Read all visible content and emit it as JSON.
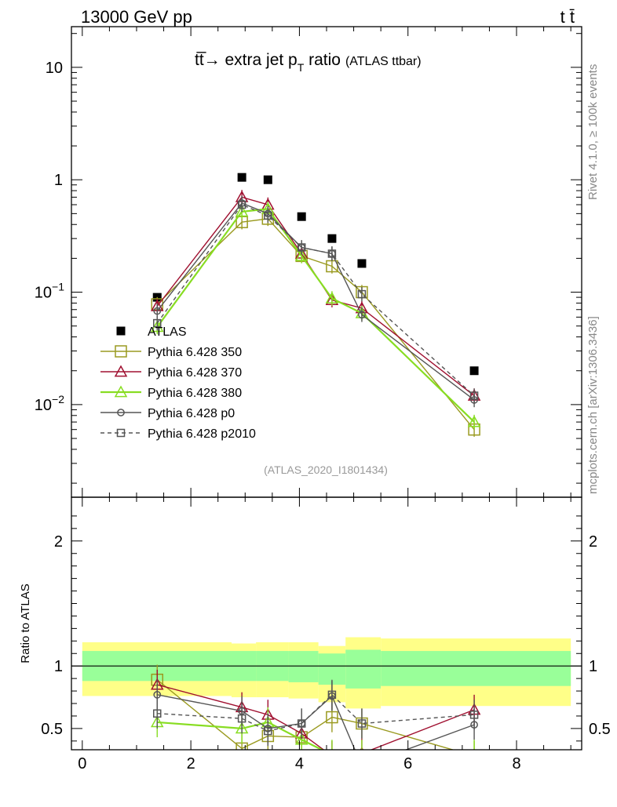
{
  "header": {
    "left": "13000 GeV pp",
    "right": "t t̄"
  },
  "title": {
    "main": "tt̅→ extra jet p",
    "sub": "T",
    "after": " ratio",
    "small": "(ATLAS ttbar)"
  },
  "side_labels": {
    "rivet": "Rivet 4.1.0, ≥ 100k events",
    "mcplots": "mcplots.cern.ch [arXiv:1306.3436]"
  },
  "analysis_tag": "(ATLAS_2020_I1801434)",
  "ratio_ylabel": "Ratio to ATLAS",
  "colors": {
    "atlas": "#000000",
    "p350": "#9a9a20",
    "p370": "#a01030",
    "p380": "#88dd22",
    "p0": "#555555",
    "p2010": "#555555",
    "band_inner": "#99ff99",
    "band_outer": "#ffff88"
  },
  "chart_data": {
    "type": "scatter",
    "xlim": [
      -0.2,
      9.2
    ],
    "main": {
      "yscale": "log",
      "ylim": [
        0.0015,
        23
      ],
      "ytick_labels": [
        {
          "v": 10,
          "base": "10",
          "exp": ""
        },
        {
          "v": 1,
          "base": "1",
          "exp": ""
        },
        {
          "v": 0.1,
          "base": "10",
          "exp": "−1"
        },
        {
          "v": 0.01,
          "base": "10",
          "exp": "−2"
        }
      ]
    },
    "ratio": {
      "ylim": [
        0.33,
        2.35
      ],
      "ytick_labels": [
        {
          "v": 2,
          "t": "2"
        },
        {
          "v": 1,
          "t": "1"
        },
        {
          "v": 0.5,
          "t": "0.5"
        }
      ]
    },
    "xtick_labels": [
      {
        "v": 0,
        "t": "0"
      },
      {
        "v": 2,
        "t": "2"
      },
      {
        "v": 4,
        "t": "4"
      },
      {
        "v": 6,
        "t": "6"
      },
      {
        "v": 8,
        "t": "8"
      }
    ],
    "x": [
      1.38,
      2.94,
      3.42,
      4.04,
      4.6,
      5.15,
      7.22
    ],
    "bands": [
      {
        "x0": 0.0,
        "x1": 2.75,
        "inner": [
          0.88,
          1.12
        ],
        "outer": [
          0.76,
          1.19
        ]
      },
      {
        "x0": 2.75,
        "x1": 3.2,
        "inner": [
          0.88,
          1.12
        ],
        "outer": [
          0.75,
          1.18
        ]
      },
      {
        "x0": 3.2,
        "x1": 3.8,
        "inner": [
          0.88,
          1.12
        ],
        "outer": [
          0.75,
          1.19
        ]
      },
      {
        "x0": 3.8,
        "x1": 4.35,
        "inner": [
          0.87,
          1.12
        ],
        "outer": [
          0.74,
          1.19
        ]
      },
      {
        "x0": 4.35,
        "x1": 4.85,
        "inner": [
          0.85,
          1.1
        ],
        "outer": [
          0.71,
          1.16
        ]
      },
      {
        "x0": 4.85,
        "x1": 5.5,
        "inner": [
          0.82,
          1.13
        ],
        "outer": [
          0.66,
          1.23
        ]
      },
      {
        "x0": 5.5,
        "x1": 9.0,
        "inner": [
          0.84,
          1.12
        ],
        "outer": [
          0.68,
          1.22
        ]
      }
    ],
    "series": [
      {
        "name": "ATLAS",
        "key": "atlas",
        "marker": "filledsquare",
        "dashed": false,
        "values": [
          0.09,
          1.05,
          1.0,
          0.47,
          0.3,
          0.18,
          0.02
        ]
      },
      {
        "name": "Pythia 6.428 350",
        "key": "p350",
        "marker": "square",
        "dashed": false,
        "values": [
          0.078,
          0.42,
          0.45,
          0.21,
          0.17,
          0.1,
          0.006
        ],
        "ratio": [
          0.89,
          0.34,
          0.44,
          0.43,
          0.59,
          0.54,
          0.28
        ]
      },
      {
        "name": "Pythia 6.428 370",
        "key": "p370",
        "marker": "triangle",
        "dashed": false,
        "values": [
          0.075,
          0.7,
          0.6,
          0.22,
          0.085,
          0.072,
          0.012
        ],
        "ratio": [
          0.85,
          0.67,
          0.61,
          0.46,
          0.28,
          0.3,
          0.65
        ]
      },
      {
        "name": "Pythia 6.428 380",
        "key": "p380",
        "marker": "triangle",
        "dashed": false,
        "values": [
          0.049,
          0.52,
          0.55,
          0.21,
          0.088,
          0.065,
          0.007
        ],
        "ratio": [
          0.55,
          0.5,
          0.55,
          0.41,
          0.29,
          0.29,
          0.29
        ]
      },
      {
        "name": "Pythia 6.428 p0",
        "key": "p0",
        "marker": "circle",
        "dashed": false,
        "values": [
          0.068,
          0.62,
          0.5,
          0.25,
          0.22,
          0.063,
          0.011
        ],
        "ratio": [
          0.77,
          0.64,
          0.5,
          0.54,
          0.76,
          0.2,
          0.53
        ]
      },
      {
        "name": "Pythia 6.428 p2010",
        "key": "p2010",
        "marker": "square",
        "dashed": true,
        "values": [
          0.053,
          0.6,
          0.48,
          0.25,
          0.22,
          0.096,
          0.012
        ],
        "ratio": [
          0.62,
          0.58,
          0.48,
          0.54,
          0.77,
          0.54,
          0.61
        ]
      }
    ]
  }
}
